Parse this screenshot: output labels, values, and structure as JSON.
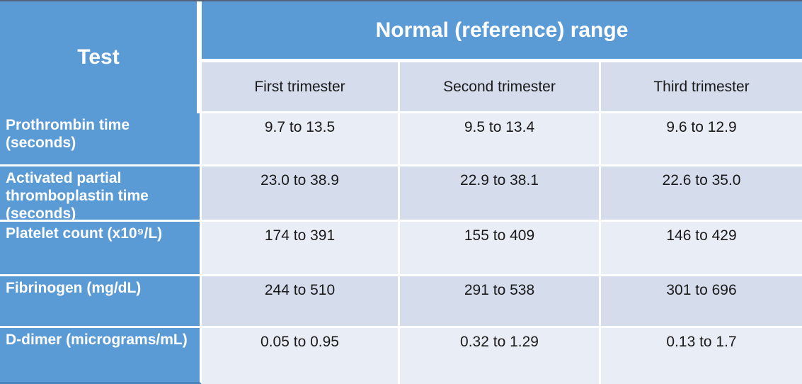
{
  "table": {
    "test_header": "Test",
    "range_header": "Normal (reference) range",
    "columns": [
      "First trimester",
      "Second trimester",
      "Third trimester"
    ],
    "rows": [
      {
        "label": "Prothrombin time (seconds)",
        "values": [
          "9.7 to 13.5",
          "9.5 to 13.4",
          "9.6 to 12.9"
        ]
      },
      {
        "label": "Activated partial thromboplastin time (seconds)",
        "values": [
          "23.0 to 38.9",
          "22.9 to 38.1",
          "22.6 to 35.0"
        ]
      },
      {
        "label": "Platelet count (x10⁹/L)",
        "values": [
          "174 to 391",
          "155 to 409",
          "146 to 429"
        ]
      },
      {
        "label": "Fibrinogen (mg/dL)",
        "values": [
          "244 to 510",
          "291 to 538",
          "301 to 696"
        ]
      },
      {
        "label": "D-dimer (micrograms/mL)",
        "values": [
          "0.05 to 0.95",
          "0.32 to 1.29",
          "0.13 to 1.7"
        ]
      }
    ],
    "colors": {
      "header_blue": "#5B9BD5",
      "row_light": "#E9EDF6",
      "row_dark": "#D5DDED",
      "separator": "#FFFFFF",
      "header_text": "#FFFFFF",
      "body_text": "#1A1A1A"
    }
  }
}
